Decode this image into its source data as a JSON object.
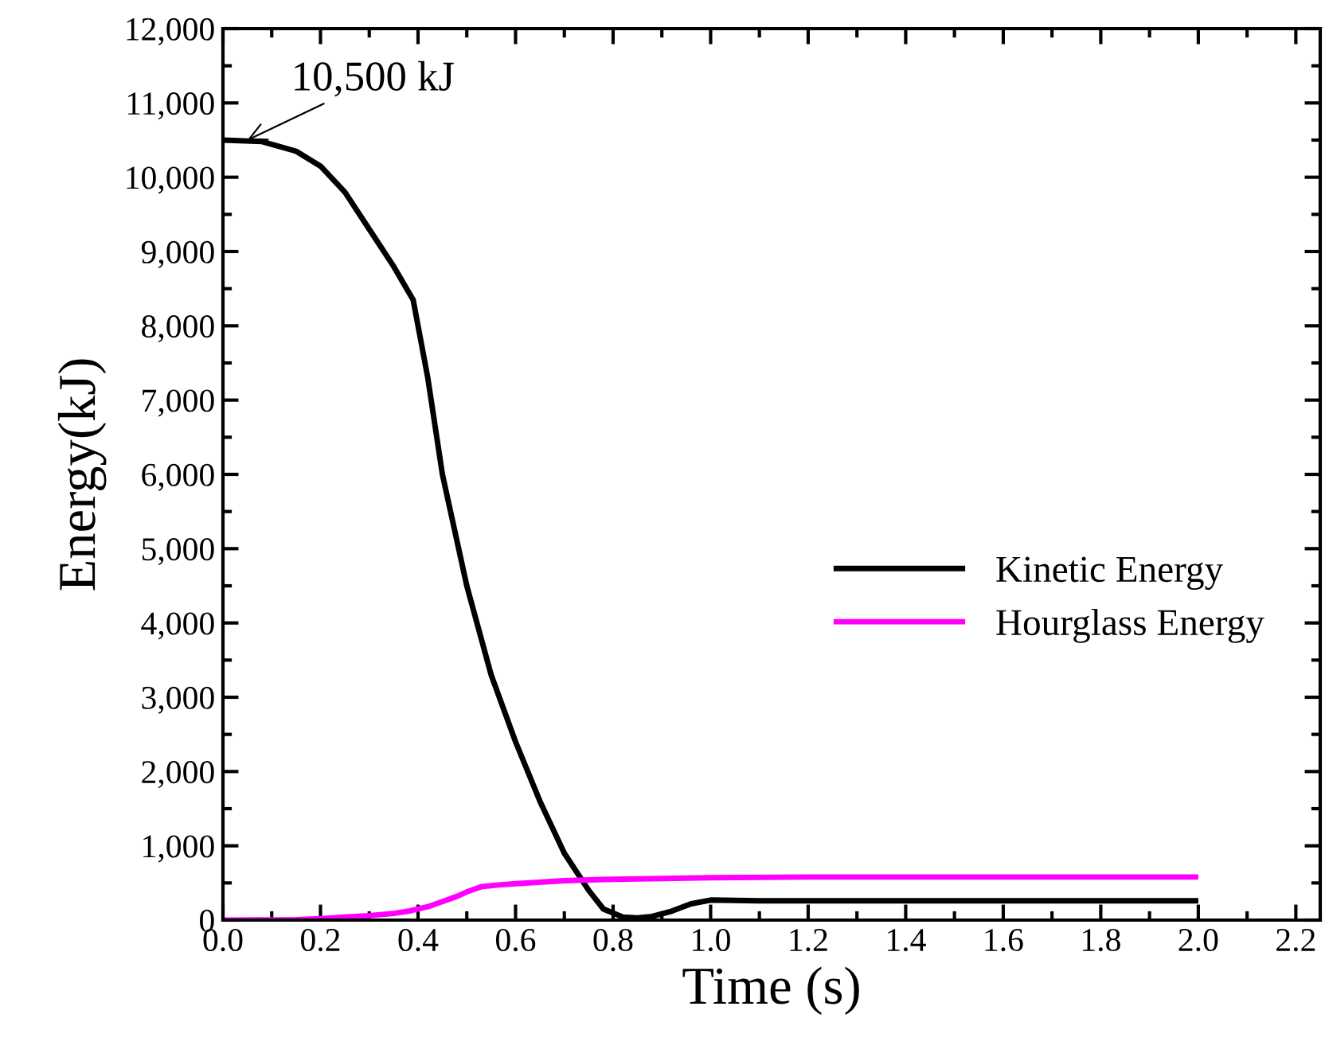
{
  "chart_data": {
    "type": "line",
    "xlabel": "Time (s)",
    "ylabel": "Energy(kJ)",
    "xlim": [
      0,
      2.25
    ],
    "ylim": [
      0,
      12000
    ],
    "xticks": [
      {
        "value": 0,
        "label": "0.0"
      },
      {
        "value": 0.2,
        "label": "0.2"
      },
      {
        "value": 0.4,
        "label": "0.4"
      },
      {
        "value": 0.6,
        "label": "0.6"
      },
      {
        "value": 0.8,
        "label": "0.8"
      },
      {
        "value": 1.0,
        "label": "1.0"
      },
      {
        "value": 1.2,
        "label": "1.2"
      },
      {
        "value": 1.4,
        "label": "1.4"
      },
      {
        "value": 1.6,
        "label": "1.6"
      },
      {
        "value": 1.8,
        "label": "1.8"
      },
      {
        "value": 2.0,
        "label": "2.0"
      },
      {
        "value": 2.2,
        "label": "2.2"
      }
    ],
    "yticks": [
      0,
      {
        "value": 1000,
        "label": "1,000"
      },
      {
        "value": 2000,
        "label": "2,000"
      },
      {
        "value": 3000,
        "label": "3,000"
      },
      {
        "value": 4000,
        "label": "4,000"
      },
      {
        "value": 5000,
        "label": "5,000"
      },
      {
        "value": 6000,
        "label": "6,000"
      },
      {
        "value": 7000,
        "label": "7,000"
      },
      {
        "value": 8000,
        "label": "8,000"
      },
      {
        "value": 9000,
        "label": "9,000"
      },
      {
        "value": 10000,
        "label": "10,000"
      },
      {
        "value": 11000,
        "label": "11,000"
      },
      {
        "value": 12000,
        "label": "12,000"
      }
    ],
    "series": [
      {
        "name": "Kinetic Energy",
        "color": "#000000",
        "x": [
          0,
          0.08,
          0.15,
          0.2,
          0.25,
          0.3,
          0.35,
          0.39,
          0.42,
          0.45,
          0.5,
          0.55,
          0.6,
          0.65,
          0.7,
          0.75,
          0.78,
          0.82,
          0.85,
          0.88,
          0.92,
          0.96,
          1.0,
          1.1,
          1.5,
          2.0
        ],
        "values": [
          10500,
          10480,
          10350,
          10150,
          9800,
          9300,
          8800,
          8350,
          7300,
          6000,
          4500,
          3300,
          2400,
          1600,
          900,
          400,
          150,
          40,
          30,
          50,
          120,
          220,
          270,
          260,
          260,
          260
        ]
      },
      {
        "name": "Hourglass Energy",
        "color": "#ff00ff",
        "x": [
          0,
          0.15,
          0.2,
          0.25,
          0.3,
          0.35,
          0.38,
          0.42,
          0.45,
          0.48,
          0.5,
          0.53,
          0.56,
          0.6,
          0.7,
          0.8,
          1.0,
          1.2,
          1.5,
          2.0
        ],
        "values": [
          0,
          5,
          20,
          40,
          60,
          90,
          120,
          180,
          250,
          320,
          380,
          450,
          470,
          490,
          530,
          550,
          570,
          580,
          580,
          580
        ]
      }
    ],
    "annotations": [
      {
        "text": "10,500 kJ",
        "x": 0.05,
        "y": 10500
      }
    ],
    "legend": "right",
    "grid": false,
    "marker": "none",
    "line_style": "solid"
  }
}
